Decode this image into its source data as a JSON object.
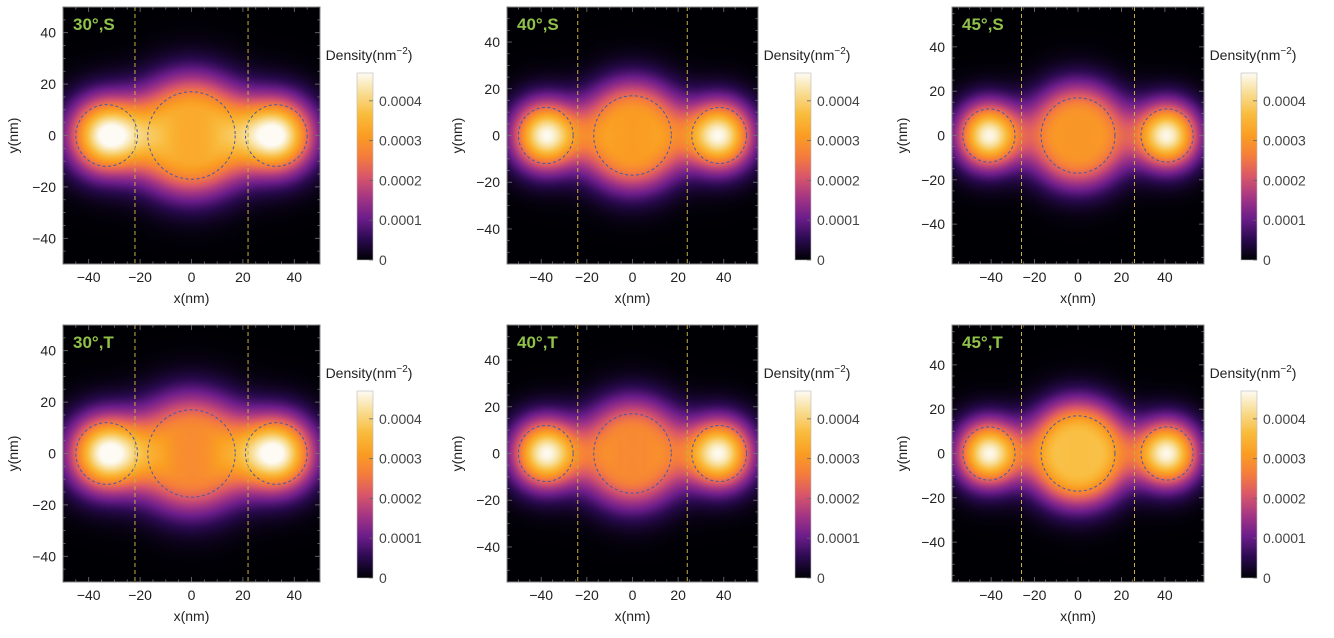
{
  "figure": {
    "colorbar_title": "Density(nm",
    "colorbar_exponent": "−2",
    "colorbar_title_close": ")",
    "colormap": [
      "#000004",
      "#2a0a4f",
      "#6b1d8a",
      "#a33584",
      "#d8566a",
      "#f57d3c",
      "#fa9e22",
      "#f9bc3d",
      "#f8dc91",
      "#fdfbf3"
    ]
  },
  "chart_data": [
    {
      "type": "heatmap",
      "panel_label": "30°,S",
      "xlabel": "x(nm)",
      "ylabel": "y(nm)",
      "xlim": [
        -50,
        50
      ],
      "ylim": [
        -50,
        50
      ],
      "xticks": [
        "-40",
        "-20",
        "0",
        "20",
        "40"
      ],
      "yticks": [
        "-40",
        "-20",
        "0",
        "20",
        "40"
      ],
      "dot_centers_x": [
        -33,
        0,
        33
      ],
      "dot_radii": [
        12,
        17,
        12
      ],
      "dot_peak_densities": [
        0.00047,
        0.00033,
        0.00047
      ],
      "divider_x": [
        -22,
        22
      ],
      "colorbar_ticks": [
        "0",
        "0.0001",
        "0.0002",
        "0.0003",
        "0.0004"
      ],
      "colorbar_max": 0.00047
    },
    {
      "type": "heatmap",
      "panel_label": "40°,S",
      "xlabel": "x(nm)",
      "ylabel": "y(nm)",
      "xlim": [
        -55,
        55
      ],
      "ylim": [
        -55,
        55
      ],
      "xticks": [
        "-40",
        "-20",
        "0",
        "20",
        "40"
      ],
      "yticks": [
        "-40",
        "-20",
        "0",
        "20",
        "40"
      ],
      "dot_centers_x": [
        -38,
        0,
        38
      ],
      "dot_radii": [
        12,
        17,
        12
      ],
      "dot_peak_densities": [
        0.00046,
        0.00031,
        0.00046
      ],
      "divider_x": [
        -24,
        24
      ],
      "colorbar_ticks": [
        "0",
        "0.0001",
        "0.0002",
        "0.0003",
        "0.0004"
      ],
      "colorbar_max": 0.00047
    },
    {
      "type": "heatmap",
      "panel_label": "45°,S",
      "xlabel": "x(nm)",
      "ylabel": "y(nm)",
      "xlim": [
        -58,
        58
      ],
      "ylim": [
        -58,
        58
      ],
      "xticks": [
        "-40",
        "-20",
        "0",
        "20",
        "40"
      ],
      "yticks": [
        "-40",
        "-20",
        "0",
        "20",
        "40"
      ],
      "dot_centers_x": [
        -41,
        0,
        41
      ],
      "dot_radii": [
        12,
        17,
        12
      ],
      "dot_peak_densities": [
        0.00046,
        0.0003,
        0.00046
      ],
      "divider_x": [
        -26,
        26
      ],
      "colorbar_ticks": [
        "0",
        "0.0001",
        "0.0002",
        "0.0003",
        "0.0004"
      ],
      "colorbar_max": 0.00047
    },
    {
      "type": "heatmap",
      "panel_label": "30°,T",
      "xlabel": "x(nm)",
      "ylabel": "y(nm)",
      "xlim": [
        -50,
        50
      ],
      "ylim": [
        -50,
        50
      ],
      "xticks": [
        "-40",
        "-20",
        "0",
        "20",
        "40"
      ],
      "yticks": [
        "-40",
        "-20",
        "0",
        "20",
        "40"
      ],
      "dot_centers_x": [
        -33,
        0,
        33
      ],
      "dot_radii": [
        12,
        17,
        12
      ],
      "dot_peak_densities": [
        0.00047,
        0.00028,
        0.00047
      ],
      "divider_x": [
        -22,
        22
      ],
      "colorbar_ticks": [
        "0",
        "0.0001",
        "0.0002",
        "0.0003",
        "0.0004"
      ],
      "colorbar_max": 0.00047
    },
    {
      "type": "heatmap",
      "panel_label": "40°,T",
      "xlabel": "x(nm)",
      "ylabel": "y(nm)",
      "xlim": [
        -55,
        55
      ],
      "ylim": [
        -55,
        55
      ],
      "xticks": [
        "-40",
        "-20",
        "0",
        "20",
        "40"
      ],
      "yticks": [
        "-40",
        "-20",
        "0",
        "20",
        "40"
      ],
      "dot_centers_x": [
        -38,
        0,
        38
      ],
      "dot_radii": [
        12,
        17,
        12
      ],
      "dot_peak_densities": [
        0.00046,
        0.00028,
        0.00046
      ],
      "divider_x": [
        -24,
        24
      ],
      "colorbar_ticks": [
        "0",
        "0.0001",
        "0.0002",
        "0.0003",
        "0.0004"
      ],
      "colorbar_max": 0.00047
    },
    {
      "type": "heatmap",
      "panel_label": "45°,T",
      "xlabel": "x(nm)",
      "ylabel": "y(nm)",
      "xlim": [
        -58,
        58
      ],
      "ylim": [
        -58,
        58
      ],
      "xticks": [
        "-40",
        "-20",
        "0",
        "20",
        "40"
      ],
      "yticks": [
        "-40",
        "-20",
        "0",
        "20",
        "40"
      ],
      "dot_centers_x": [
        -41,
        0,
        41
      ],
      "dot_radii": [
        12,
        17,
        12
      ],
      "dot_peak_densities": [
        0.00046,
        0.00037,
        0.00046
      ],
      "divider_x": [
        -26,
        26
      ],
      "colorbar_ticks": [
        "0",
        "0.0001",
        "0.0002",
        "0.0003",
        "0.0004"
      ],
      "colorbar_max": 0.00047
    }
  ]
}
